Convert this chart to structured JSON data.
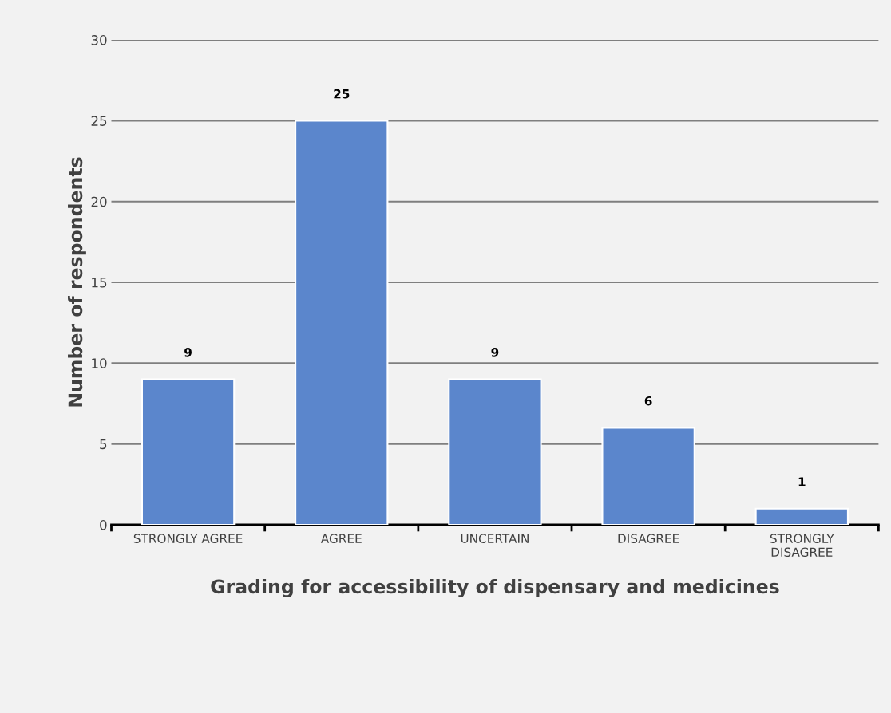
{
  "chart_data": {
    "type": "bar",
    "xlabel": "Grading for accessibility of dispensary and medicines",
    "ylabel": "Number of respondents",
    "categories": [
      "STRONGLY AGREE",
      "AGREE",
      "UNCERTAIN",
      "DISAGREE",
      "STRONGLY\nDISAGREE"
    ],
    "values": [
      9,
      25,
      9,
      6,
      1
    ],
    "color": "#5b86cc",
    "ylim": [
      0,
      30
    ],
    "yticks": [
      0,
      5,
      10,
      15,
      20,
      25,
      30
    ],
    "grid": "y",
    "data_labels": true
  }
}
